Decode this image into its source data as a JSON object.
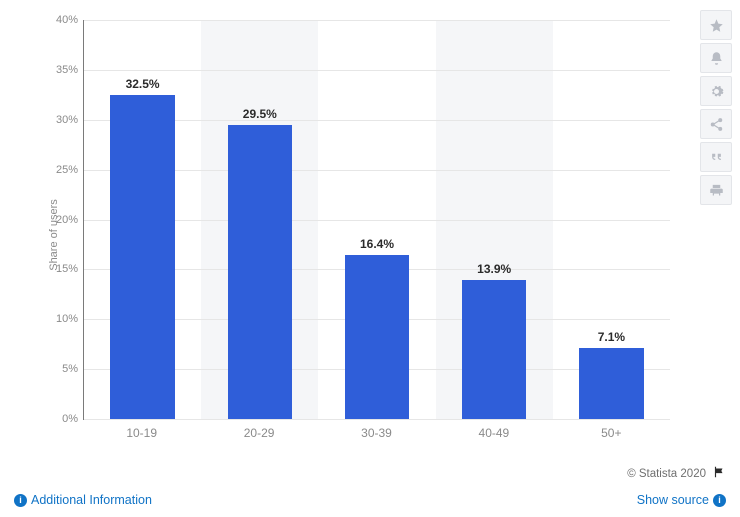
{
  "chart": {
    "type": "bar",
    "yaxis_label": "Share of users",
    "categories": [
      "10-19",
      "20-29",
      "30-39",
      "40-49",
      "50+"
    ],
    "values": [
      32.5,
      29.5,
      16.4,
      13.9,
      7.1
    ],
    "value_labels": [
      "32.5%",
      "29.5%",
      "16.4%",
      "13.9%",
      "7.1%"
    ],
    "bar_color": "#2f5ed9",
    "band_color": "#f5f6f8",
    "grid_color": "#e6e6e6",
    "axis_color": "#7a7a7a",
    "text_color": "#8a8a8a",
    "label_color": "#2b2b2b",
    "ylim": [
      0,
      40
    ],
    "ytick_step": 5,
    "ytick_suffix": "%",
    "bar_width_ratio": 0.55,
    "label_fontsize": 12,
    "yaxis_fontsize": 11
  },
  "toolbar": {
    "items": [
      "star-icon",
      "bell-icon",
      "gear-icon",
      "share-icon",
      "quote-icon",
      "print-icon"
    ]
  },
  "footer": {
    "copyright": "© Statista 2020",
    "additional_info": "Additional Information",
    "show_source": "Show source"
  }
}
